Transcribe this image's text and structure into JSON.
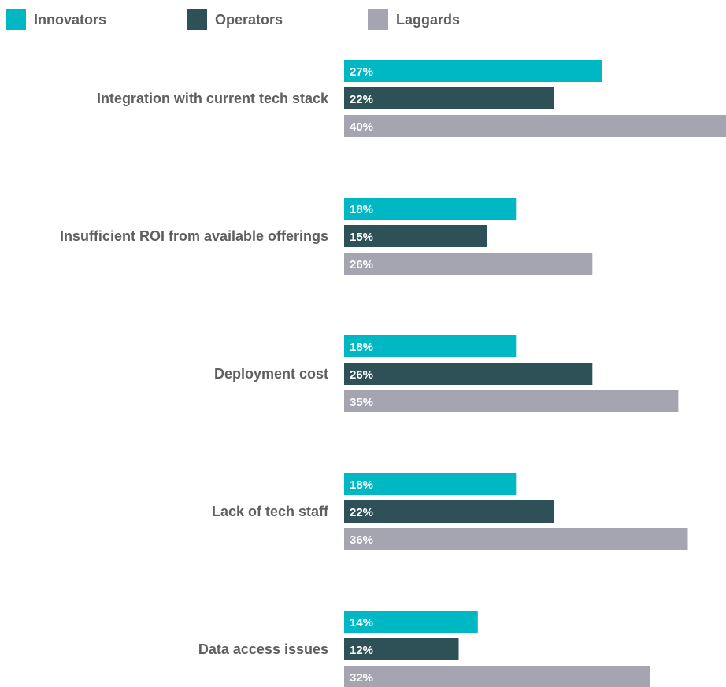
{
  "chart_data": {
    "type": "bar",
    "orientation": "horizontal",
    "categories": [
      "Integration with current tech stack",
      "Insufficient ROI from available offerings",
      "Deployment cost",
      "Lack of tech staff",
      "Data access issues"
    ],
    "series": [
      {
        "name": "Innovators",
        "color": "#00b8c4",
        "values": [
          27,
          18,
          18,
          18,
          14
        ],
        "labels": [
          "27%",
          "18%",
          "18%",
          "18%",
          "14%"
        ]
      },
      {
        "name": "Operators",
        "color": "#2e5157",
        "values": [
          22,
          15,
          26,
          22,
          12
        ],
        "labels": [
          "22%",
          "15%",
          "26%",
          "22%",
          "12%"
        ]
      },
      {
        "name": "Laggards",
        "color": "#a5a5b1",
        "values": [
          40,
          26,
          35,
          36,
          32
        ],
        "labels": [
          "40%",
          "26%",
          "35%",
          "36%",
          "32%"
        ]
      }
    ],
    "xlim": [
      0,
      40
    ],
    "legend_position": "top-left",
    "grid": false,
    "value_unit": "%"
  }
}
